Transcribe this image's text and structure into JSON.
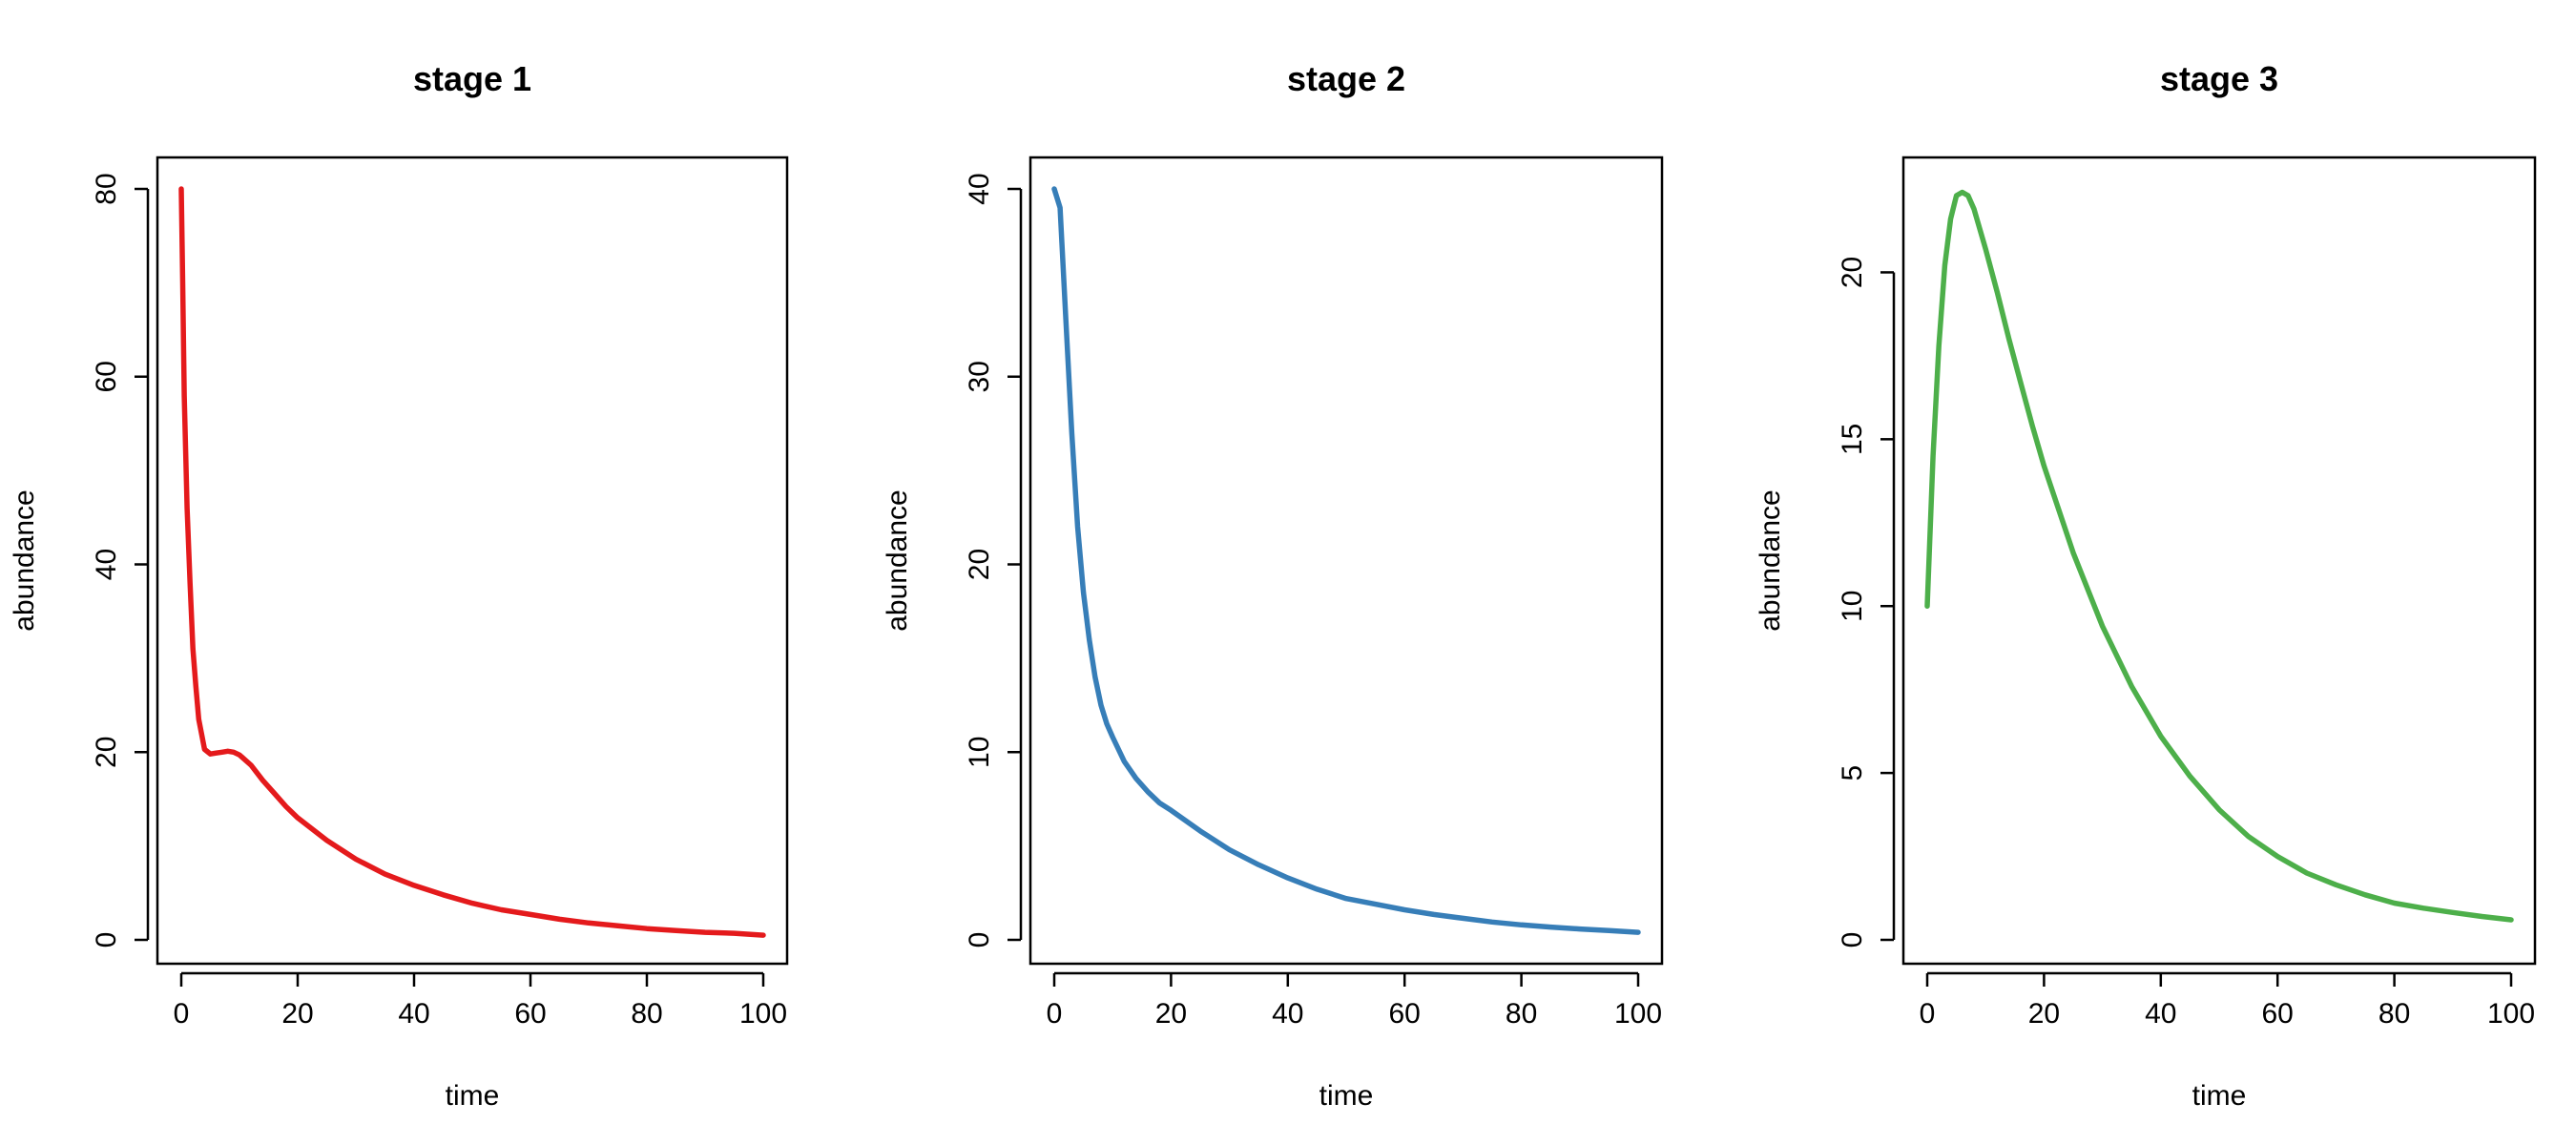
{
  "chart_data": [
    {
      "type": "line",
      "title": "stage 1",
      "xlabel": "time",
      "ylabel": "abundance",
      "xlim": [
        0,
        100
      ],
      "ylim": [
        0,
        80
      ],
      "xticks": [
        0,
        20,
        40,
        60,
        80,
        100
      ],
      "yticks": [
        0,
        20,
        40,
        60,
        80
      ],
      "grid": false,
      "series": [
        {
          "color": "#e41a1c",
          "x": [
            0,
            0.25,
            0.5,
            0.75,
            1,
            1.5,
            2,
            2.5,
            3,
            4,
            5,
            6,
            7,
            8,
            9,
            10,
            12,
            14,
            16,
            18,
            20,
            25,
            30,
            35,
            40,
            45,
            50,
            55,
            60,
            65,
            70,
            75,
            80,
            85,
            90,
            95,
            100
          ],
          "y": [
            80,
            70,
            58,
            52,
            46,
            38,
            31,
            27,
            23.5,
            20.3,
            19.8,
            19.9,
            20.0,
            20.1,
            20.0,
            19.7,
            18.6,
            17.0,
            15.6,
            14.2,
            13.0,
            10.6,
            8.6,
            7.0,
            5.8,
            4.8,
            3.9,
            3.2,
            2.7,
            2.2,
            1.8,
            1.5,
            1.2,
            1.0,
            0.8,
            0.7,
            0.5
          ]
        }
      ]
    },
    {
      "type": "line",
      "title": "stage 2",
      "xlabel": "time",
      "ylabel": "abundance",
      "xlim": [
        0,
        100
      ],
      "ylim": [
        0,
        40
      ],
      "xticks": [
        0,
        20,
        40,
        60,
        80,
        100
      ],
      "yticks": [
        0,
        10,
        20,
        30,
        40
      ],
      "grid": false,
      "series": [
        {
          "color": "#377eb8",
          "x": [
            0,
            1,
            2,
            3,
            4,
            5,
            6,
            7,
            8,
            9,
            10,
            12,
            14,
            16,
            18,
            20,
            25,
            30,
            35,
            40,
            45,
            50,
            55,
            60,
            65,
            70,
            75,
            80,
            85,
            90,
            95,
            100
          ],
          "y": [
            40,
            39,
            33,
            27,
            22,
            18.5,
            16,
            14,
            12.5,
            11.5,
            10.8,
            9.5,
            8.6,
            7.9,
            7.3,
            6.9,
            5.8,
            4.8,
            4.0,
            3.3,
            2.7,
            2.2,
            1.9,
            1.6,
            1.35,
            1.15,
            0.95,
            0.8,
            0.68,
            0.58,
            0.5,
            0.4
          ]
        }
      ]
    },
    {
      "type": "line",
      "title": "stage 3",
      "xlabel": "time",
      "ylabel": "abundance",
      "xlim": [
        0,
        100
      ],
      "ylim": [
        0,
        22.5
      ],
      "xticks": [
        0,
        20,
        40,
        60,
        80,
        100
      ],
      "yticks": [
        0,
        5,
        10,
        15,
        20
      ],
      "grid": false,
      "series": [
        {
          "color": "#4daf4a",
          "x": [
            0,
            1,
            2,
            3,
            4,
            5,
            6,
            7,
            8,
            9,
            10,
            12,
            14,
            16,
            18,
            20,
            25,
            30,
            35,
            40,
            45,
            50,
            55,
            60,
            65,
            70,
            75,
            80,
            85,
            90,
            95,
            100
          ],
          "y": [
            10,
            14.5,
            17.8,
            20.2,
            21.6,
            22.3,
            22.4,
            22.3,
            21.9,
            21.3,
            20.7,
            19.4,
            18.0,
            16.7,
            15.4,
            14.2,
            11.6,
            9.4,
            7.6,
            6.1,
            4.9,
            3.9,
            3.1,
            2.5,
            2.0,
            1.65,
            1.35,
            1.1,
            0.95,
            0.82,
            0.7,
            0.6
          ]
        }
      ]
    }
  ]
}
